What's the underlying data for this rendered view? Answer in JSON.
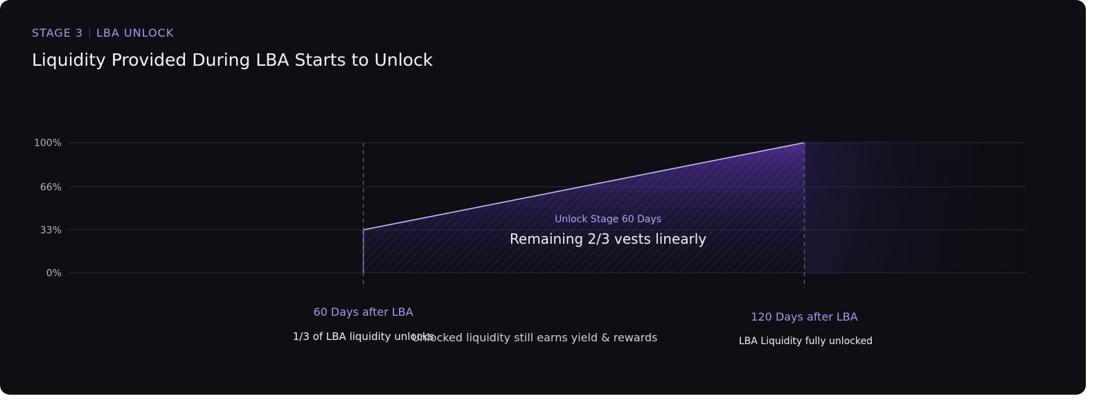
{
  "header": {
    "stage": "STAGE 3",
    "phase": "LBA UNLOCK",
    "title": "Liquidity Provided During LBA Starts to Unlock"
  },
  "chart_data": {
    "type": "area",
    "title": "Liquidity Provided During LBA Starts to Unlock",
    "xlabel": "",
    "ylabel": "",
    "x_unit": "days after LBA",
    "xlim": [
      20,
      150
    ],
    "ylim": [
      0,
      100
    ],
    "y_ticks": [
      0,
      33,
      66,
      100
    ],
    "y_tick_labels": [
      "0%",
      "33%",
      "66%",
      "100%"
    ],
    "grid": true,
    "series": [
      {
        "x": [
          60,
          120,
          150
        ],
        "y": [
          33,
          100,
          100
        ]
      }
    ],
    "milestones": [
      {
        "x": 60,
        "label": "60 Days after LBA",
        "description": "1/3 of LBA liquidity unlocks"
      },
      {
        "x": 120,
        "label": "120 Days after LBA",
        "description": "LBA Liquidity fully unlocked"
      }
    ],
    "annotations": {
      "region_subtitle": "Unlock Stage 60 Days",
      "region_title": "Remaining 2/3 vests linearly",
      "footer_note": "Unlocked liquidity still earns yield & rewards"
    },
    "colors": {
      "accent": "#a99ae8",
      "line": "#c9bdf7",
      "fill": "#6d3fd1",
      "background": "#0f0e14"
    }
  }
}
